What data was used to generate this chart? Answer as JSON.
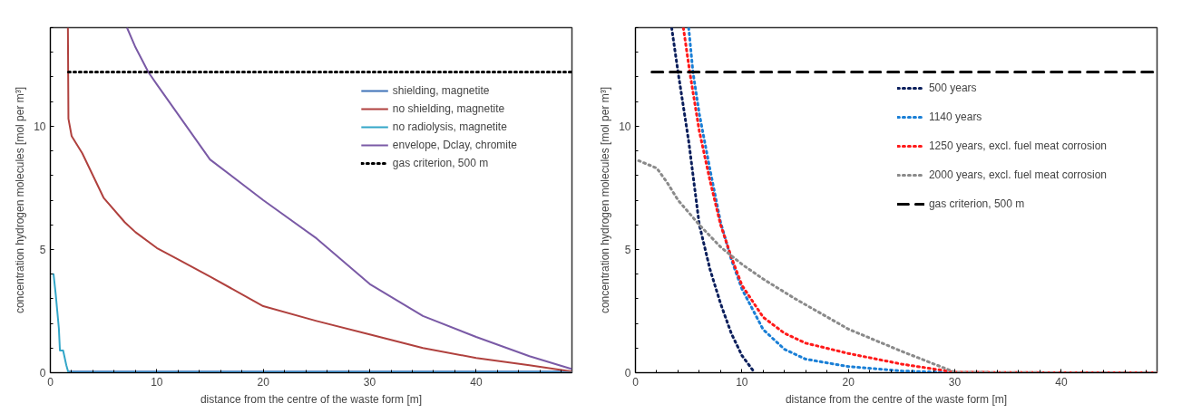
{
  "chart_data": [
    {
      "type": "line",
      "xlabel": "distance from the centre of the waste form [m]",
      "ylabel": "concentration hydrogen molecules [mol per m³]",
      "xlim": [
        0,
        49
      ],
      "ylim": [
        0,
        14
      ],
      "xticks": [
        0,
        10,
        20,
        30,
        40
      ],
      "yticks": [
        0,
        5,
        10
      ],
      "grid": false,
      "legend": "top right",
      "series": [
        {
          "name": "shielding, magnetite",
          "color": "#3f72b8",
          "line_style": "solid",
          "x": [
            1.7,
            5,
            10,
            20,
            30,
            40,
            49
          ],
          "values": [
            0.05,
            0.05,
            0.05,
            0.05,
            0.05,
            0.05,
            0.05
          ]
        },
        {
          "name": "no shielding, magnetite",
          "color": "#b0413e",
          "line_style": "solid",
          "x": [
            1.65,
            1.7,
            2,
            3,
            4,
            5,
            7,
            8,
            10,
            12,
            15,
            20,
            25,
            30,
            35,
            40,
            45,
            49
          ],
          "values": [
            14,
            10.3,
            9.6,
            8.9,
            8.0,
            7.1,
            6.1,
            5.7,
            5.06,
            4.6,
            3.9,
            2.7,
            2.1,
            1.55,
            1.0,
            0.6,
            0.3,
            0.05
          ]
        },
        {
          "name": "no radiolysis, magnetite",
          "color": "#33a6c8",
          "line_style": "solid",
          "x": [
            0.2,
            0.3,
            0.5,
            0.8,
            0.9,
            1.2,
            1.5,
            1.7,
            10,
            20,
            30,
            40,
            49
          ],
          "values": [
            4.0,
            4.0,
            3.2,
            1.8,
            0.9,
            0.9,
            0.3,
            0,
            0,
            0,
            0,
            0,
            0
          ]
        },
        {
          "name": "envelope, Dclay, chromite",
          "color": "#7a5aa6",
          "line_style": "solid",
          "x": [
            7.2,
            8,
            9.2,
            10,
            15,
            20,
            25,
            30,
            35,
            40,
            45,
            49
          ],
          "values": [
            14,
            13.2,
            12.2,
            11.7,
            8.65,
            7.0,
            5.45,
            3.6,
            2.3,
            1.45,
            0.67,
            0.15
          ]
        },
        {
          "name": "gas criterion, 500 m",
          "color": "#000000",
          "line_style": "dotted",
          "x": [
            1.7,
            49
          ],
          "values": [
            12.2,
            12.2
          ]
        }
      ]
    },
    {
      "type": "line",
      "xlabel": "distance from the centre of the waste form [m]",
      "ylabel": "concentration hydrogen molecules [mol per m³]",
      "xlim": [
        0,
        49
      ],
      "ylim": [
        0,
        14
      ],
      "xticks": [
        0,
        10,
        20,
        30,
        40
      ],
      "yticks": [
        0,
        5,
        10
      ],
      "grid": false,
      "legend": "top right",
      "series": [
        {
          "name": "500 years",
          "color": "#0b1f5c",
          "line_style": "dotted",
          "x": [
            3.4,
            4,
            5,
            6,
            7,
            8,
            9,
            10,
            11.2
          ],
          "values": [
            14,
            12.2,
            9.4,
            6.0,
            4.2,
            2.8,
            1.6,
            0.7,
            0
          ]
        },
        {
          "name": "1140 years",
          "color": "#1a7fd6",
          "line_style": "dotted",
          "x": [
            5.0,
            5.4,
            6,
            7,
            8,
            9,
            10,
            12,
            14,
            16,
            20,
            25,
            30,
            40,
            49
          ],
          "values": [
            14,
            12.2,
            10.5,
            8.25,
            6.1,
            4.6,
            3.4,
            1.75,
            0.95,
            0.55,
            0.25,
            0.07,
            0,
            0,
            0
          ]
        },
        {
          "name": "1250 years, excl. fuel meat corrosion",
          "color": "#ff1a1a",
          "line_style": "dotted",
          "x": [
            4.5,
            5.1,
            6,
            7,
            8,
            9,
            10,
            12,
            14,
            16,
            20,
            25,
            30,
            40,
            49
          ],
          "values": [
            14,
            12.2,
            9.8,
            7.8,
            6.0,
            4.7,
            3.55,
            2.25,
            1.6,
            1.2,
            0.78,
            0.35,
            0.02,
            0,
            0
          ]
        },
        {
          "name": "2000 years, excl. fuel meat corrosion",
          "color": "#8a8a8a",
          "line_style": "dotted",
          "x": [
            0.3,
            2,
            3,
            4,
            5,
            6,
            8,
            10,
            12,
            15,
            20,
            25,
            30,
            40,
            49
          ],
          "values": [
            8.6,
            8.3,
            7.7,
            7.0,
            6.5,
            6.0,
            5.1,
            4.4,
            3.8,
            3.0,
            1.77,
            0.87,
            0.02,
            0,
            0
          ]
        },
        {
          "name": "gas criterion, 500 m",
          "color": "#000000",
          "line_style": "dashed",
          "x": [
            1.55,
            49
          ],
          "values": [
            12.2,
            12.2
          ]
        }
      ]
    }
  ]
}
